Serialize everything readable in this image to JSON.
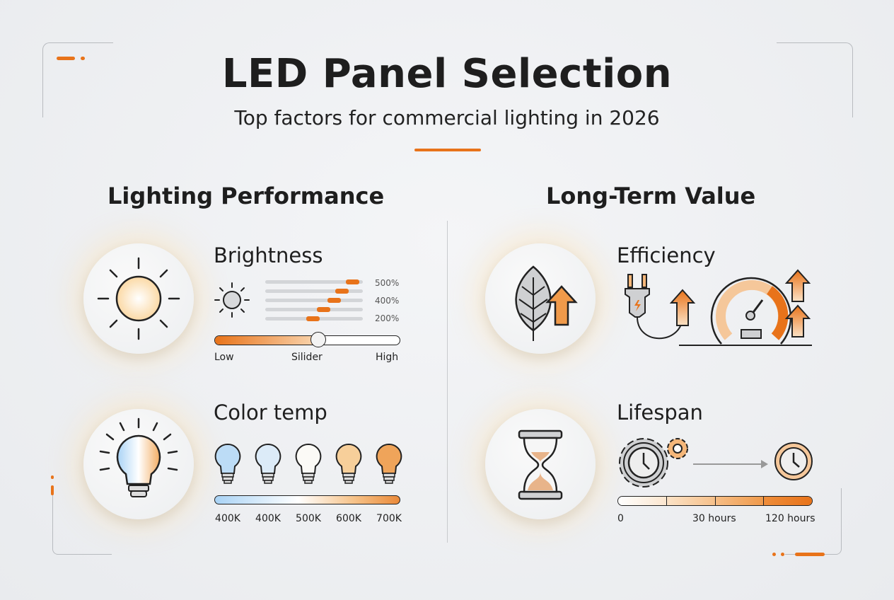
{
  "header": {
    "title": "LED Panel Selection",
    "subtitle": "Top factors for commercial lighting in 2026"
  },
  "colors": {
    "accent": "#e8731a",
    "background": "#eceef0",
    "text": "#1e1e1e"
  },
  "left": {
    "title": "Lighting Performance",
    "brightness": {
      "title": "Brightness",
      "icon": "sun-icon",
      "level_bars": [
        0.9,
        0.79,
        0.71,
        0.6,
        0.49
      ],
      "level_labels": [
        "500%",
        "400%",
        "200%"
      ],
      "slider_value": 0.56,
      "slider_labels": {
        "low": "Low",
        "mid": "Silider",
        "high": "High"
      }
    },
    "color_temp": {
      "title": "Color temp",
      "icon": "lightbulb-icon",
      "bulbs": [
        {
          "label": "400K",
          "color": "#bcdcf6"
        },
        {
          "label": "400K",
          "color": "#dcebf8"
        },
        {
          "label": "500K",
          "color": "#fbfaf6"
        },
        {
          "label": "600K",
          "color": "#f7cf9a"
        },
        {
          "label": "700K",
          "color": "#efa45a"
        }
      ]
    }
  },
  "right": {
    "title": "Long-Term Value",
    "efficiency": {
      "title": "Efficiency",
      "icon": "leaf-icon"
    },
    "lifespan": {
      "title": "Lifespan",
      "icon": "hourglass-icon",
      "scale_labels": [
        "0",
        "30 hours",
        "120 hours"
      ]
    }
  }
}
